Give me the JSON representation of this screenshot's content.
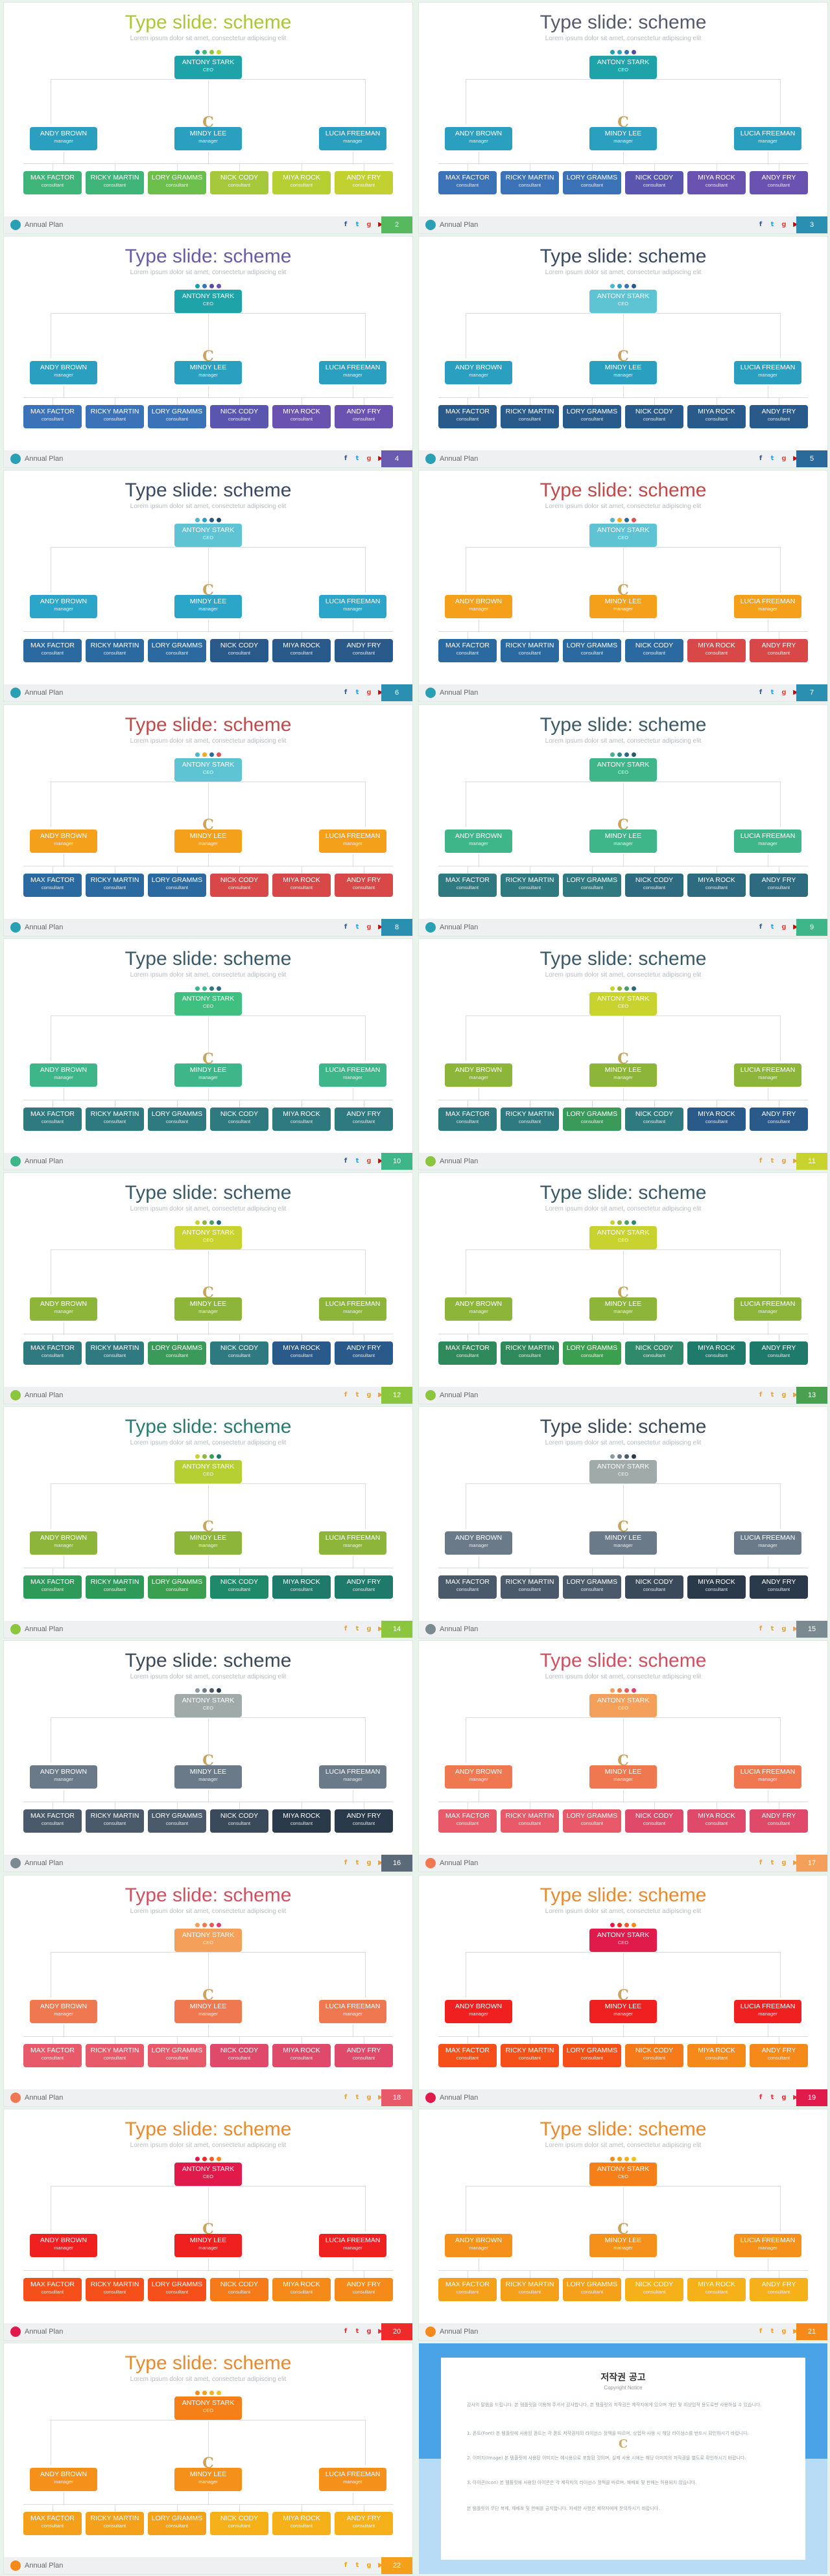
{
  "slide_common": {
    "title": "Type slide: scheme",
    "subtitle": "Lorem ipsum dolor sit amet, consectetur adipiscing elit",
    "footer_label": "Annual Plan",
    "logo_glyph": "C",
    "social_icons": [
      {
        "name": "facebook-icon",
        "glyph": "f"
      },
      {
        "name": "twitter-icon",
        "glyph": "t"
      },
      {
        "name": "google-plus-icon",
        "glyph": "g"
      },
      {
        "name": "youtube-icon",
        "glyph": "▶"
      }
    ]
  },
  "org": {
    "ceo": {
      "name": "ANTONY STARK",
      "role": "CEO"
    },
    "managers": [
      {
        "name": "ANDY BROWN",
        "role": "manager"
      },
      {
        "name": "MINDY LEE",
        "role": "manager"
      },
      {
        "name": "LUCIA FREEMAN",
        "role": "manager"
      }
    ],
    "consultants": [
      {
        "name": "MAX FACTOR",
        "role": "consultant"
      },
      {
        "name": "RICKY MARTIN",
        "role": "consultant"
      },
      {
        "name": "LORY GRAMMS",
        "role": "consultant"
      },
      {
        "name": "NICK CODY",
        "role": "consultant"
      },
      {
        "name": "MIYA ROCK",
        "role": "consultant"
      },
      {
        "name": "ANDY FRY",
        "role": "consultant"
      }
    ]
  },
  "slides": [
    {
      "num": "2",
      "title_color": "#a8c83a",
      "dots": [
        "#1a9fb0",
        "#3fb57a",
        "#8cc63f",
        "#c8d32f"
      ],
      "ceo": "#1ea3a8",
      "managers": [
        "#2b9fc0",
        "#2b9fc0",
        "#2b9fc0"
      ],
      "consultants": [
        "#3fb57a",
        "#3fb57a",
        "#6cbf4a",
        "#a5c93a",
        "#b6cf33",
        "#c2d12f"
      ],
      "footer_circle": "#2aa0b5",
      "num_bg": "#56b95e",
      "icon_colors": [
        "#3b5998",
        "#1da1f2",
        "#dd4b39",
        "#cc0000"
      ]
    },
    {
      "num": "3",
      "title_color": "#555a6e",
      "dots": [
        "#1a9fb0",
        "#2b9fc0",
        "#3b72b8",
        "#5a4aa0"
      ],
      "ceo": "#1ea3a8",
      "managers": [
        "#2b9fc0",
        "#2b9fc0",
        "#2b9fc0"
      ],
      "consultants": [
        "#3b72b8",
        "#3b72b8",
        "#3b72b8",
        "#5a56b0",
        "#6a52b0",
        "#6a52b0"
      ],
      "footer_circle": "#2aa0b5",
      "num_bg": "#2a8fb0",
      "icon_colors": [
        "#3b5998",
        "#1da1f2",
        "#dd4b39",
        "#cc0000"
      ]
    },
    {
      "num": "4",
      "title_color": "#6a5aa8",
      "dots": [
        "#1a9fb0",
        "#3b72b8",
        "#5a4aa0",
        "#6a52b0"
      ],
      "ceo": "#1ea3a8",
      "managers": [
        "#2b9fc0",
        "#2b9fc0",
        "#2b9fc0"
      ],
      "consultants": [
        "#3b72b8",
        "#3b72b8",
        "#3b72b8",
        "#5a56b0",
        "#6a52b0",
        "#6a52b0"
      ],
      "footer_circle": "#2aa0b5",
      "num_bg": "#6a5ab0",
      "icon_colors": [
        "#3b5998",
        "#1da1f2",
        "#dd4b39",
        "#cc0000"
      ]
    },
    {
      "num": "5",
      "title_color": "#3a4a62",
      "dots": [
        "#4ab8d0",
        "#2b9fc0",
        "#3b72b8",
        "#2a5a8a"
      ],
      "ceo": "#5ec4d4",
      "managers": [
        "#2b9fc0",
        "#2b9fc0",
        "#2b9fc0"
      ],
      "consultants": [
        "#2a5a8a",
        "#2a5a8a",
        "#2a5a8a",
        "#2a5a8a",
        "#2a5a8a",
        "#2a5a8a"
      ],
      "footer_circle": "#2aa0b5",
      "num_bg": "#2a6a9a",
      "icon_colors": [
        "#3b5998",
        "#1da1f2",
        "#dd4b39",
        "#cc0000"
      ]
    },
    {
      "num": "6",
      "title_color": "#3a4a62",
      "dots": [
        "#4ab8d0",
        "#2b9fc0",
        "#2a5a8a",
        "#1e4a74"
      ],
      "ceo": "#5ec4d4",
      "managers": [
        "#2ba6c8",
        "#2ba6c8",
        "#2ba6c8"
      ],
      "consultants": [
        "#2a6aa0",
        "#2a6aa0",
        "#2a6aa0",
        "#2a5a8a",
        "#2a5a8a",
        "#2a5a8a"
      ],
      "footer_circle": "#2aa0b5",
      "num_bg": "#2a8fb0",
      "icon_colors": [
        "#3b5998",
        "#1da1f2",
        "#dd4b39",
        "#cc0000"
      ]
    },
    {
      "num": "7",
      "title_color": "#c04a4a",
      "dots": [
        "#4ab8d0",
        "#f5a623",
        "#2a6aa0",
        "#e05050"
      ],
      "ceo": "#5ec4d4",
      "managers": [
        "#f5a01a",
        "#f5a01a",
        "#f5a01a"
      ],
      "consultants": [
        "#2a6aa0",
        "#2a6aa0",
        "#2a6aa0",
        "#2a6aa0",
        "#d84848",
        "#d84848"
      ],
      "footer_circle": "#2aa0b5",
      "num_bg": "#2a8fb0",
      "icon_colors": [
        "#3b5998",
        "#1da1f2",
        "#dd4b39",
        "#cc0000"
      ]
    },
    {
      "num": "8",
      "title_color": "#c04a4a",
      "dots": [
        "#4ab8d0",
        "#f5a623",
        "#2a6aa0",
        "#e05050"
      ],
      "ceo": "#5ec4d4",
      "managers": [
        "#f5a01a",
        "#f5a01a",
        "#f5a01a"
      ],
      "consultants": [
        "#2a6aa0",
        "#2a6aa0",
        "#2a6aa0",
        "#d84848",
        "#d84848",
        "#d84848"
      ],
      "footer_circle": "#2aa0b5",
      "num_bg": "#2a8fb0",
      "icon_colors": [
        "#3b5998",
        "#1da1f2",
        "#dd4b39",
        "#cc0000"
      ]
    },
    {
      "num": "9",
      "title_color": "#3a5a68",
      "dots": [
        "#3fb58a",
        "#2a8a8a",
        "#2a6a80",
        "#2a5a70"
      ],
      "ceo": "#3fb58a",
      "managers": [
        "#3fb58a",
        "#3fb58a",
        "#3fb58a"
      ],
      "consultants": [
        "#2e7a80",
        "#2e7a80",
        "#2e7a80",
        "#2e6a80",
        "#2e6a80",
        "#2e6a80"
      ],
      "footer_circle": "#2aa0b5",
      "num_bg": "#3fb58a",
      "icon_colors": [
        "#3b5998",
        "#1da1f2",
        "#dd4b39",
        "#cc0000"
      ]
    },
    {
      "num": "10",
      "title_color": "#3a5a68",
      "dots": [
        "#3fb58a",
        "#3fb58a",
        "#2e7a80",
        "#2e6a80"
      ],
      "ceo": "#3fc080",
      "managers": [
        "#3fb58a",
        "#3fb58a",
        "#3fb58a"
      ],
      "consultants": [
        "#2e7a80",
        "#2e7a80",
        "#2e7a80",
        "#2e7a80",
        "#2e7a80",
        "#2e7a80"
      ],
      "footer_circle": "#3fb58a",
      "num_bg": "#3fb58a",
      "icon_colors": [
        "#3b5998",
        "#1da1f2",
        "#dd4b39",
        "#cc0000"
      ]
    },
    {
      "num": "11",
      "title_color": "#3a5a68",
      "dots": [
        "#c8d32f",
        "#8cb53a",
        "#4aa060",
        "#2a6a80"
      ],
      "ceo": "#c8d32f",
      "managers": [
        "#8cb53a",
        "#8cb53a",
        "#8cb53a"
      ],
      "consultants": [
        "#2e7a80",
        "#2e7a80",
        "#3a9a5a",
        "#2e7a80",
        "#2a5a8a",
        "#2a5a8a"
      ],
      "footer_circle": "#8cc63f",
      "num_bg": "#c8d32f",
      "icon_colors": [
        "#e6a23c",
        "#e6a23c",
        "#e6a23c",
        "#e6a23c"
      ]
    },
    {
      "num": "12",
      "title_color": "#3a5a68",
      "dots": [
        "#c8d32f",
        "#8cb53a",
        "#4aa060",
        "#2a6a80"
      ],
      "ceo": "#c8d32f",
      "managers": [
        "#8cb53a",
        "#8cb53a",
        "#8cb53a"
      ],
      "consultants": [
        "#2e7a80",
        "#2e7a80",
        "#3a9a5a",
        "#2e7a80",
        "#2a5a8a",
        "#2a5a8a"
      ],
      "footer_circle": "#8cc63f",
      "num_bg": "#8cc63f",
      "icon_colors": [
        "#e6a23c",
        "#e6a23c",
        "#e6a23c",
        "#e6a23c"
      ]
    },
    {
      "num": "13",
      "title_color": "#3a5a68",
      "dots": [
        "#c8d32f",
        "#8cb53a",
        "#4aa060",
        "#2a8a6a"
      ],
      "ceo": "#c8d32f",
      "managers": [
        "#8cb53a",
        "#8cb53a",
        "#8cb53a"
      ],
      "consultants": [
        "#2e8a5a",
        "#2e8a5a",
        "#3aa050",
        "#2e8a6a",
        "#1e7a6a",
        "#1e7a6a"
      ],
      "footer_circle": "#8cc63f",
      "num_bg": "#4aa050",
      "icon_colors": [
        "#e6a23c",
        "#e6a23c",
        "#e6a23c",
        "#e6a23c"
      ]
    },
    {
      "num": "14",
      "title_color": "#2a7a70",
      "dots": [
        "#c8d32f",
        "#8cb53a",
        "#3aa050",
        "#1e7a6a"
      ],
      "ceo": "#b6cf33",
      "managers": [
        "#8cb53a",
        "#8cb53a",
        "#8cb53a"
      ],
      "consultants": [
        "#2e9a5a",
        "#2e9a5a",
        "#3aa050",
        "#1e8a6a",
        "#1e7a6a",
        "#1e7a6a"
      ],
      "footer_circle": "#8cc63f",
      "num_bg": "#8cc63f",
      "icon_colors": [
        "#e6a23c",
        "#e6a23c",
        "#e6a23c",
        "#e6a23c"
      ]
    },
    {
      "num": "15",
      "title_color": "#3a4a58",
      "dots": [
        "#8a9aa0",
        "#6a7a88",
        "#4a5a68",
        "#2a3a48"
      ],
      "ceo": "#a0aaa8",
      "managers": [
        "#6a7a88",
        "#6a7a88",
        "#6a7a88"
      ],
      "consultants": [
        "#4a5a6a",
        "#4a5a6a",
        "#4a5a6a",
        "#3a4a5a",
        "#2a3a4a",
        "#2a3a4a"
      ],
      "footer_circle": "#7a8a90",
      "num_bg": "#7a8a90",
      "icon_colors": [
        "#e6a23c",
        "#e6a23c",
        "#e6a23c",
        "#e6a23c"
      ]
    },
    {
      "num": "16",
      "title_color": "#3a4a58",
      "dots": [
        "#8a9aa0",
        "#6a7a88",
        "#4a5a68",
        "#2a3a48"
      ],
      "ceo": "#a0aaa8",
      "managers": [
        "#6a7a88",
        "#6a7a88",
        "#6a7a88"
      ],
      "consultants": [
        "#4a5a6a",
        "#4a5a6a",
        "#4a5a6a",
        "#3a4a5a",
        "#2a3a4a",
        "#2a3a4a"
      ],
      "footer_circle": "#7a8a90",
      "num_bg": "#5a6a78",
      "icon_colors": [
        "#e6a23c",
        "#e6a23c",
        "#e6a23c",
        "#e6a23c"
      ]
    },
    {
      "num": "17",
      "title_color": "#d05060",
      "dots": [
        "#f5a05a",
        "#f07850",
        "#e85a5a",
        "#e04070"
      ],
      "ceo": "#f5a05a",
      "managers": [
        "#f07850",
        "#f07850",
        "#f07850"
      ],
      "consultants": [
        "#e85a6a",
        "#e85a6a",
        "#e85a6a",
        "#e04a6a",
        "#e04a6a",
        "#e04a6a"
      ],
      "footer_circle": "#f07850",
      "num_bg": "#f5a05a",
      "icon_colors": [
        "#e6a23c",
        "#e6a23c",
        "#e6a23c",
        "#e6a23c"
      ]
    },
    {
      "num": "18",
      "title_color": "#d05060",
      "dots": [
        "#f5a05a",
        "#f07850",
        "#e85a5a",
        "#e04070"
      ],
      "ceo": "#f5a05a",
      "managers": [
        "#f07850",
        "#f07850",
        "#f07850"
      ],
      "consultants": [
        "#e85a6a",
        "#e85a6a",
        "#e85a6a",
        "#e04a6a",
        "#e04a6a",
        "#e04a6a"
      ],
      "footer_circle": "#f07850",
      "num_bg": "#e85a6a",
      "icon_colors": [
        "#e6a23c",
        "#e6a23c",
        "#e6a23c",
        "#e6a23c"
      ]
    },
    {
      "num": "19",
      "title_color": "#e88a30",
      "dots": [
        "#e01a4a",
        "#f02a2a",
        "#f55a2a",
        "#f58a1a"
      ],
      "ceo": "#e01a4a",
      "managers": [
        "#f02020",
        "#f02020",
        "#f02020"
      ],
      "consultants": [
        "#f5501a",
        "#f5501a",
        "#f5501a",
        "#f57a1a",
        "#f58a1a",
        "#f58a1a"
      ],
      "footer_circle": "#e01a4a",
      "num_bg": "#e01a4a",
      "icon_colors": [
        "#e03030",
        "#e03030",
        "#e03030",
        "#e03030"
      ]
    },
    {
      "num": "20",
      "title_color": "#e88a30",
      "dots": [
        "#e01a4a",
        "#f02a2a",
        "#f55a2a",
        "#f58a1a"
      ],
      "ceo": "#e01a4a",
      "managers": [
        "#f02020",
        "#f02020",
        "#f02020"
      ],
      "consultants": [
        "#f5501a",
        "#f5501a",
        "#f5501a",
        "#f57a1a",
        "#f58a1a",
        "#f58a1a"
      ],
      "footer_circle": "#e01a4a",
      "num_bg": "#f02a2a",
      "icon_colors": [
        "#e03030",
        "#e03030",
        "#e03030",
        "#e03030"
      ]
    },
    {
      "num": "21",
      "title_color": "#e88a30",
      "dots": [
        "#f58a1a",
        "#f5a01a",
        "#f5b01a",
        "#f5c01a"
      ],
      "ceo": "#f5801a",
      "managers": [
        "#f5901a",
        "#f5901a",
        "#f5901a"
      ],
      "consultants": [
        "#f5a01a",
        "#f5a01a",
        "#f5a01a",
        "#f5b01a",
        "#f5b01a",
        "#f5b01a"
      ],
      "footer_circle": "#f58a1a",
      "num_bg": "#f58a1a",
      "icon_colors": [
        "#f5a01a",
        "#f5a01a",
        "#f5a01a",
        "#f5a01a"
      ]
    },
    {
      "num": "22",
      "title_color": "#e88a30",
      "dots": [
        "#f58a1a",
        "#f5a01a",
        "#f5b01a",
        "#f5c01a"
      ],
      "ceo": "#f5801a",
      "managers": [
        "#f5901a",
        "#f5901a",
        "#f5901a"
      ],
      "consultants": [
        "#f5a01a",
        "#f5a01a",
        "#f5a01a",
        "#f5b01a",
        "#f5b01a",
        "#f5b01a"
      ],
      "footer_circle": "#f58a1a",
      "num_bg": "#f5a01a",
      "icon_colors": [
        "#f5a01a",
        "#f5a01a",
        "#f5a01a",
        "#f5a01a"
      ]
    }
  ],
  "notice": {
    "title": "저작권 공고",
    "subtitle": "Copyright Notice",
    "paragraphs": [
      "감사의 말씀을 드립니다. 본 템플릿을 이용해 주셔서 감사합니다. 본 템플릿의 저작권은 제작자에게 있으며 개인 및 비상업적 용도로만 사용하실 수 있습니다.",
      "1. 폰트(Font) 본 템플릿에 사용된 폰트는 각 폰트 저작권자의 라이선스 정책을 따르며, 상업적 사용 시 해당 라이선스를 반드시 확인하시기 바랍니다.",
      "2. 이미지(Image) 본 템플릿에 사용된 이미지는 예시용으로 포함된 것이며, 실제 사용 시에는 해당 이미지의 저작권을 별도로 확인하시기 바랍니다.",
      "3. 아이콘(Icon) 본 템플릿에 사용된 아이콘은 각 제작자의 라이선스 정책을 따르며, 재배포 및 판매는 허용되지 않습니다.",
      "본 템플릿의 무단 복제, 재배포 및 판매를 금지합니다. 자세한 사항은 제작자에게 문의하시기 바랍니다."
    ]
  }
}
